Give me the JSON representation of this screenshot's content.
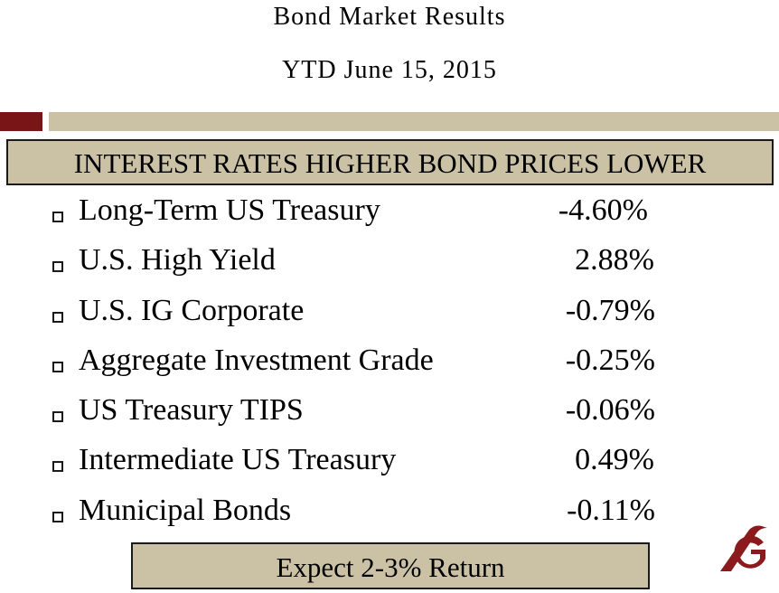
{
  "header": {
    "title": "Bond Market Results",
    "subtitle": "YTD June 15, 2015"
  },
  "colors": {
    "accent_dark": "#7a1517",
    "accent_light": "#cbc2a6",
    "box_fill": "#cbc2a6",
    "logo": "#8a1a1c"
  },
  "banner": {
    "text": "INTEREST RATES HIGHER BOND PRICES LOWER"
  },
  "results": [
    {
      "label": "Long-Term US Treasury",
      "value": "-4.60%"
    },
    {
      "label": "U.S. High Yield",
      "value": "2.88%"
    },
    {
      "label": "U.S. IG Corporate",
      "value": "-0.79%"
    },
    {
      "label": "Aggregate Investment Grade",
      "value": "-0.25%"
    },
    {
      "label": "US Treasury TIPS",
      "value": "-0.06%"
    },
    {
      "label": "Intermediate US Treasury",
      "value": "0.49%"
    },
    {
      "label": "Municipal Bonds",
      "value": "-0.11%"
    }
  ],
  "footer": {
    "text": "Expect 2-3% Return"
  },
  "logo": {
    "icon": "g-logo-icon"
  }
}
